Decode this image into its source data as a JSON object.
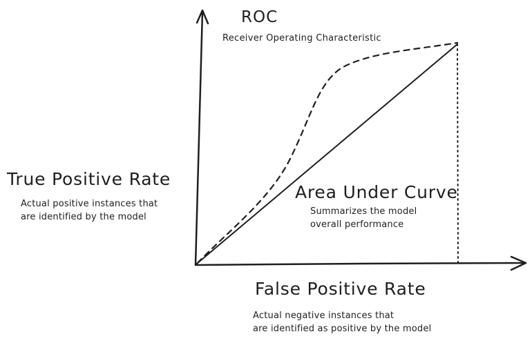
{
  "title": "ROC",
  "subtitle": "Receiver Operating Characteristic",
  "y_axis": {
    "title": "True Positive Rate",
    "description": [
      "Actual positive instances that",
      "are identified by the model"
    ]
  },
  "x_axis": {
    "title": "False Positive Rate",
    "description": [
      "Actual negative instances that",
      "are identified as positive by the model"
    ]
  },
  "area": {
    "title": "Area Under Curve",
    "description": [
      "Summarizes the model",
      "overall performance"
    ]
  },
  "colors": {
    "ink": "#1e1e1e",
    "background": "#ffffff"
  },
  "icons": [
    "x-axis-arrow-icon",
    "y-axis-arrow-icon"
  ]
}
